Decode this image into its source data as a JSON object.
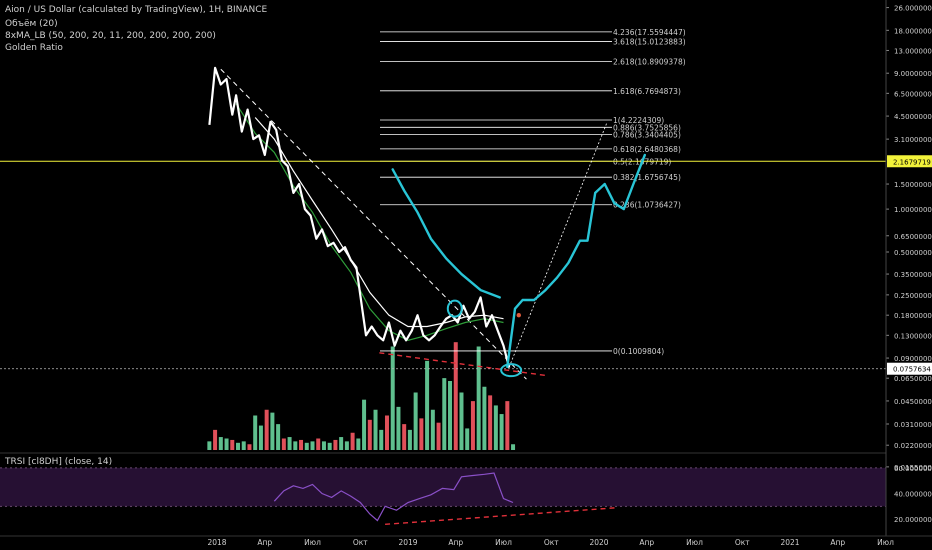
{
  "legend": {
    "symbol_line": "Aion / US Dollar (calculated by TradingView), 1H, BINANCE",
    "volume_line": "Объём (20)",
    "ma_line": "8xMA_LB (50, 200, 20, 11, 200, 200, 200, 200)",
    "golden_line": "Golden Ratio",
    "rsi_line": "TRSI [cl8DH] (close, 14)"
  },
  "colors": {
    "background": "#000000",
    "price": "#ffffff",
    "projection": "#29c5d6",
    "ma": "#2f9e3a",
    "volume_up": "#5fbf8e",
    "volume_down": "#e0505a",
    "fib_line": "#ffffff",
    "highlight": "#f2f23a",
    "rsi_line": "#8a50c8",
    "rsi_band": "#2a1238",
    "rsi_level": "#c0a030",
    "trend_dashed": "#ffffff",
    "support_dashed": "#e0303a"
  },
  "chart_data": {
    "type": "line",
    "scale": "log",
    "price_axis_ticks": [
      "26.0000000",
      "18.0000000",
      "13.0000000",
      "9.0000000",
      "6.5000000",
      "4.5000000",
      "3.1000000",
      "1.5000000",
      "1.0000000",
      "0.6500000",
      "0.5000000",
      "0.3500000",
      "0.2500000",
      "0.1800000",
      "0.1300000",
      "0.0900000",
      "0.0650000",
      "0.0450000",
      "0.0310000",
      "0.0220000",
      "0.0155000"
    ],
    "highlight_labels": [
      "2.1679719",
      "0.0757634"
    ],
    "time_axis": [
      "2018",
      "Апр",
      "Июл",
      "Окт",
      "2019",
      "Апр",
      "Июл",
      "Окт",
      "2020",
      "Апр",
      "Июл",
      "Окт",
      "2021",
      "Апр",
      "Июл"
    ],
    "fib_levels": [
      {
        "label": "4.236(17.5594447)",
        "value": 17.5594447
      },
      {
        "label": "3.618(15.0123883)",
        "value": 15.0123883
      },
      {
        "label": "2.618(10.8909378)",
        "value": 10.8909378
      },
      {
        "label": "1.618(6.7694873)",
        "value": 6.7694873
      },
      {
        "label": "1(4.2224309)",
        "value": 4.2224309
      },
      {
        "label": "0.886(3.7525856)",
        "value": 3.7525856
      },
      {
        "label": "0.786(3.3404405)",
        "value": 3.3404405
      },
      {
        "label": "0.618(2.6480368)",
        "value": 2.6480368
      },
      {
        "label": "0.5(2.1679719)",
        "value": 2.1679719
      },
      {
        "label": "0.382(1.6756745)",
        "value": 1.6756745
      },
      {
        "label": "0.236(1.0736427)",
        "value": 1.0736427
      },
      {
        "label": "0(0.1009804)",
        "value": 0.1009804
      }
    ],
    "price_series": [
      [
        2017.96,
        3.9
      ],
      [
        2017.99,
        9.8
      ],
      [
        2018.02,
        7.5
      ],
      [
        2018.05,
        8.2
      ],
      [
        2018.08,
        4.6
      ],
      [
        2018.1,
        6.3
      ],
      [
        2018.13,
        3.5
      ],
      [
        2018.16,
        5.0
      ],
      [
        2018.19,
        3.1
      ],
      [
        2018.22,
        3.3
      ],
      [
        2018.25,
        2.4
      ],
      [
        2018.28,
        4.1
      ],
      [
        2018.31,
        3.6
      ],
      [
        2018.34,
        2.2
      ],
      [
        2018.37,
        2.0
      ],
      [
        2018.4,
        1.3
      ],
      [
        2018.43,
        1.5
      ],
      [
        2018.46,
        1.0
      ],
      [
        2018.49,
        0.9
      ],
      [
        2018.52,
        0.62
      ],
      [
        2018.55,
        0.72
      ],
      [
        2018.58,
        0.55
      ],
      [
        2018.61,
        0.58
      ],
      [
        2018.64,
        0.5
      ],
      [
        2018.67,
        0.54
      ],
      [
        2018.7,
        0.44
      ],
      [
        2018.73,
        0.39
      ],
      [
        2018.76,
        0.2
      ],
      [
        2018.78,
        0.13
      ],
      [
        2018.81,
        0.15
      ],
      [
        2018.84,
        0.13
      ],
      [
        2018.87,
        0.12
      ],
      [
        2018.9,
        0.16
      ],
      [
        2018.93,
        0.11
      ],
      [
        2018.96,
        0.14
      ],
      [
        2018.99,
        0.12
      ],
      [
        2019.02,
        0.14
      ],
      [
        2019.05,
        0.18
      ],
      [
        2019.08,
        0.13
      ],
      [
        2019.11,
        0.12
      ],
      [
        2019.14,
        0.13
      ],
      [
        2019.17,
        0.15
      ],
      [
        2019.2,
        0.17
      ],
      [
        2019.23,
        0.18
      ],
      [
        2019.26,
        0.16
      ],
      [
        2019.29,
        0.21
      ],
      [
        2019.32,
        0.17
      ],
      [
        2019.35,
        0.19
      ],
      [
        2019.38,
        0.24
      ],
      [
        2019.41,
        0.15
      ],
      [
        2019.44,
        0.18
      ],
      [
        2019.47,
        0.14
      ],
      [
        2019.5,
        0.11
      ],
      [
        2019.53,
        0.077
      ]
    ],
    "ma_series": [
      [
        2018.1,
        5.5
      ],
      [
        2018.2,
        3.4
      ],
      [
        2018.3,
        2.5
      ],
      [
        2018.4,
        1.45
      ],
      [
        2018.5,
        0.95
      ],
      [
        2018.6,
        0.55
      ],
      [
        2018.7,
        0.36
      ],
      [
        2018.8,
        0.2
      ],
      [
        2018.9,
        0.14
      ],
      [
        2019.0,
        0.12
      ],
      [
        2019.1,
        0.13
      ],
      [
        2019.2,
        0.145
      ],
      [
        2019.3,
        0.16
      ],
      [
        2019.4,
        0.17
      ],
      [
        2019.5,
        0.16
      ]
    ],
    "slow_ma_series": [
      [
        2018.2,
        4.4
      ],
      [
        2018.3,
        3.1
      ],
      [
        2018.4,
        1.85
      ],
      [
        2018.5,
        1.15
      ],
      [
        2018.6,
        0.72
      ],
      [
        2018.7,
        0.44
      ],
      [
        2018.8,
        0.26
      ],
      [
        2018.9,
        0.18
      ],
      [
        2019.0,
        0.15
      ],
      [
        2019.1,
        0.15
      ],
      [
        2019.2,
        0.16
      ],
      [
        2019.3,
        0.175
      ],
      [
        2019.4,
        0.18
      ],
      [
        2019.5,
        0.17
      ]
    ],
    "projection_old": [
      [
        2018.92,
        1.9
      ],
      [
        2018.98,
        1.35
      ],
      [
        2019.05,
        0.95
      ],
      [
        2019.12,
        0.62
      ],
      [
        2019.2,
        0.45
      ],
      [
        2019.28,
        0.35
      ],
      [
        2019.38,
        0.27
      ],
      [
        2019.48,
        0.24
      ]
    ],
    "projection_new": [
      [
        2019.52,
        0.078
      ],
      [
        2019.56,
        0.2
      ],
      [
        2019.6,
        0.23
      ],
      [
        2019.66,
        0.23
      ],
      [
        2019.72,
        0.27
      ],
      [
        2019.78,
        0.33
      ],
      [
        2019.84,
        0.42
      ],
      [
        2019.9,
        0.6
      ],
      [
        2019.94,
        0.6
      ],
      [
        2019.98,
        1.3
      ],
      [
        2020.03,
        1.5
      ],
      [
        2020.08,
        1.1
      ],
      [
        2020.13,
        1.0
      ],
      [
        2020.18,
        1.5
      ],
      [
        2020.24,
        2.4
      ]
    ],
    "volume_values": [
      [
        2017.96,
        6
      ],
      [
        2017.99,
        14
      ],
      [
        2018.02,
        9
      ],
      [
        2018.05,
        8
      ],
      [
        2018.08,
        7
      ],
      [
        2018.11,
        5
      ],
      [
        2018.14,
        6
      ],
      [
        2018.17,
        4
      ],
      [
        2018.2,
        24
      ],
      [
        2018.23,
        17
      ],
      [
        2018.26,
        28
      ],
      [
        2018.29,
        26
      ],
      [
        2018.32,
        18
      ],
      [
        2018.35,
        8
      ],
      [
        2018.38,
        9
      ],
      [
        2018.41,
        6
      ],
      [
        2018.44,
        7
      ],
      [
        2018.47,
        5
      ],
      [
        2018.5,
        6
      ],
      [
        2018.53,
        8
      ],
      [
        2018.56,
        6
      ],
      [
        2018.59,
        5
      ],
      [
        2018.62,
        7
      ],
      [
        2018.65,
        9
      ],
      [
        2018.68,
        6
      ],
      [
        2018.71,
        12
      ],
      [
        2018.74,
        8
      ],
      [
        2018.77,
        35
      ],
      [
        2018.8,
        21
      ],
      [
        2018.83,
        28
      ],
      [
        2018.86,
        14
      ],
      [
        2018.89,
        24
      ],
      [
        2018.92,
        72
      ],
      [
        2018.95,
        30
      ],
      [
        2018.98,
        18
      ],
      [
        2019.01,
        14
      ],
      [
        2019.04,
        40
      ],
      [
        2019.07,
        22
      ],
      [
        2019.1,
        62
      ],
      [
        2019.13,
        28
      ],
      [
        2019.16,
        19
      ],
      [
        2019.19,
        50
      ],
      [
        2019.22,
        48
      ],
      [
        2019.25,
        75
      ],
      [
        2019.28,
        40
      ],
      [
        2019.31,
        15
      ],
      [
        2019.34,
        34
      ],
      [
        2019.37,
        72
      ],
      [
        2019.4,
        44
      ],
      [
        2019.43,
        38
      ],
      [
        2019.46,
        31
      ],
      [
        2019.49,
        25
      ],
      [
        2019.52,
        34
      ],
      [
        2019.55,
        4
      ]
    ],
    "rsi_ticks": [
      "60.0000000",
      "40.0000000",
      "20.0000000"
    ],
    "rsi_series": [
      [
        2018.3,
        34
      ],
      [
        2018.35,
        42
      ],
      [
        2018.4,
        46
      ],
      [
        2018.45,
        44
      ],
      [
        2018.5,
        47
      ],
      [
        2018.55,
        40
      ],
      [
        2018.6,
        37
      ],
      [
        2018.65,
        42
      ],
      [
        2018.7,
        38
      ],
      [
        2018.75,
        33
      ],
      [
        2018.8,
        24
      ],
      [
        2018.84,
        19
      ],
      [
        2018.88,
        30
      ],
      [
        2018.94,
        27
      ],
      [
        2019.0,
        33
      ],
      [
        2019.06,
        36
      ],
      [
        2019.12,
        39
      ],
      [
        2019.18,
        44
      ],
      [
        2019.24,
        43
      ],
      [
        2019.28,
        53
      ],
      [
        2019.34,
        54
      ],
      [
        2019.4,
        55
      ],
      [
        2019.45,
        56
      ],
      [
        2019.5,
        36
      ],
      [
        2019.55,
        33
      ]
    ],
    "xlim": [
      2017.9,
      2021.4
    ],
    "price_ylim": [
      0.0145,
      28
    ],
    "rsi_ylim": [
      10,
      70
    ]
  }
}
